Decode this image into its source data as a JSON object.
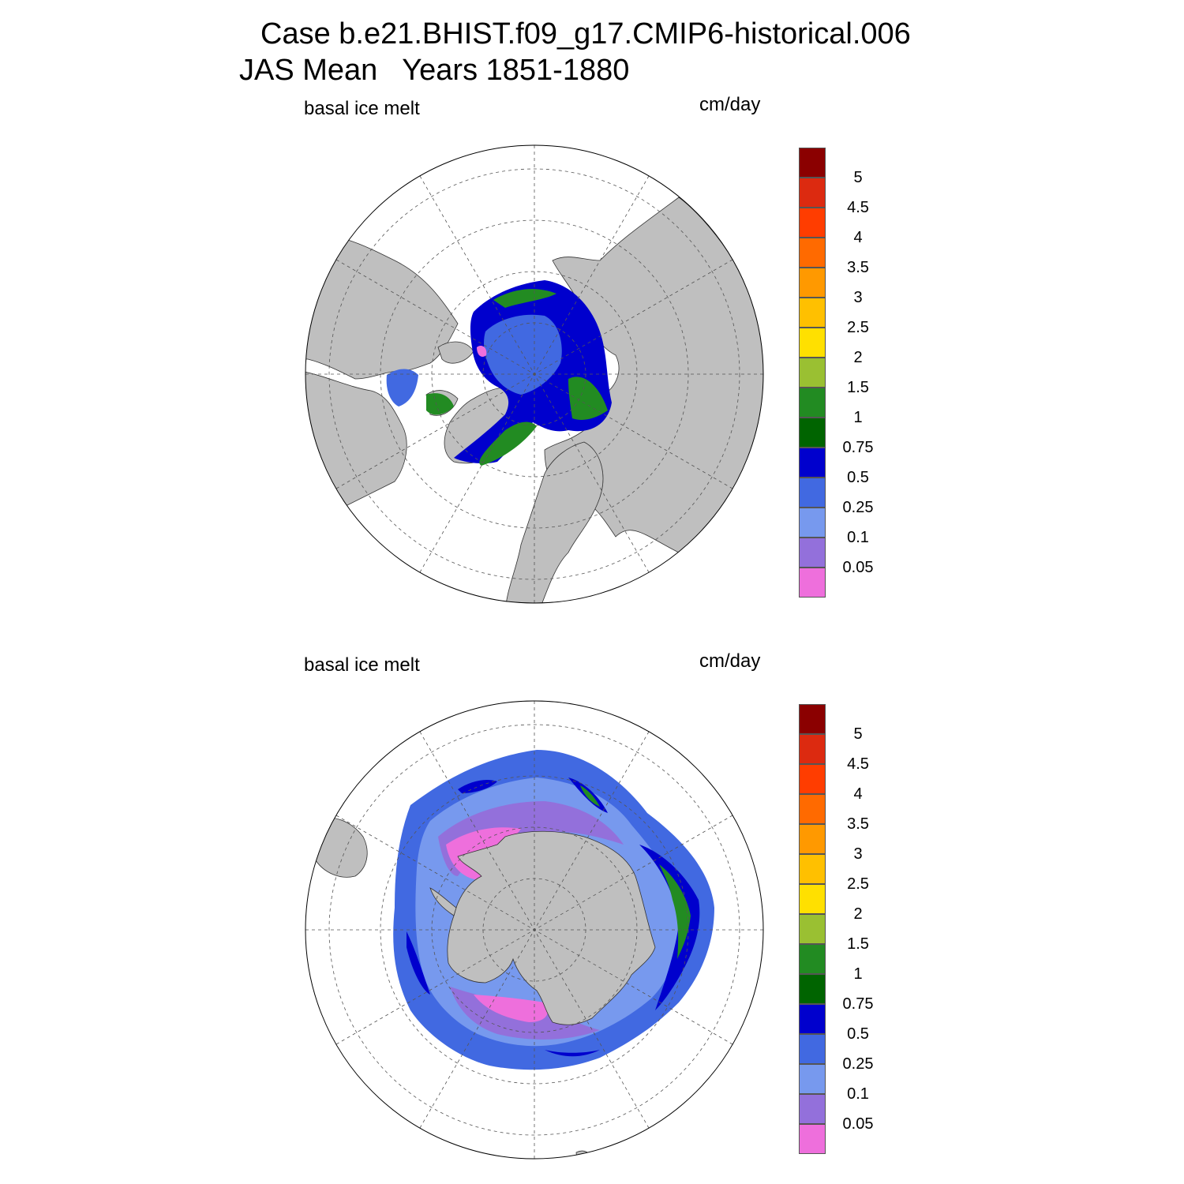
{
  "figure": {
    "title_line1": "Case b.e21.BHIST.f09_g17.CMIP6-historical.006",
    "title_line2": "JAS Mean   Years 1851-1880"
  },
  "panels": [
    {
      "id": "north",
      "left_label": "basal ice melt",
      "right_label": "cm/day",
      "hemisphere": "north"
    },
    {
      "id": "south",
      "left_label": "basal ice melt",
      "right_label": "cm/day",
      "hemisphere": "south"
    }
  ],
  "colorbar": {
    "ticks": [
      "5",
      "4.5",
      "4",
      "3.5",
      "3",
      "2.5",
      "2",
      "1.5",
      "1",
      "0.75",
      "0.5",
      "0.25",
      "0.1",
      "0.05"
    ],
    "colors": [
      "#8b0000",
      "#dc2a10",
      "#ff3d00",
      "#ff6a00",
      "#ff9900",
      "#ffc000",
      "#ffe000",
      "#9ac032",
      "#228b22",
      "#006400",
      "#0000cd",
      "#4169e1",
      "#7799ee",
      "#9370db",
      "#ee6fdc"
    ]
  },
  "map_colors": {
    "land": "#bfbfbf",
    "ocean": "#ffffff",
    "grid": "#555555"
  }
}
